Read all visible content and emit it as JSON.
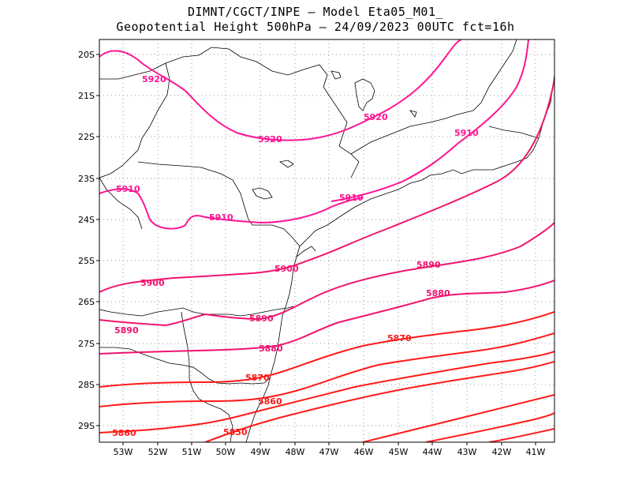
{
  "header": {
    "line1": "DIMNT/CGCT/INPE –  Model Eta05_M01_",
    "line2": "Geopotential Height 500hPa –  24/09/2023 00UTC fct=16h"
  },
  "axes": {
    "lat_ticks": [
      "20S",
      "21S",
      "22S",
      "23S",
      "24S",
      "25S",
      "26S",
      "27S",
      "28S",
      "29S"
    ],
    "lon_ticks": [
      "53W",
      "52W",
      "51W",
      "50W",
      "49W",
      "48W",
      "47W",
      "46W",
      "45W",
      "44W",
      "43W",
      "42W",
      "41W"
    ]
  },
  "contours": {
    "labels": [
      "5920",
      "5920",
      "5920",
      "5910",
      "5910",
      "5910",
      "5910",
      "5900",
      "5900",
      "5890",
      "5890",
      "5890",
      "5880",
      "5880",
      "5870",
      "5870",
      "5860",
      "5860",
      "5850"
    ],
    "colors": {
      "high": "#ff1493",
      "mid": "#f0146e",
      "low": "#ff1a1a"
    }
  }
}
